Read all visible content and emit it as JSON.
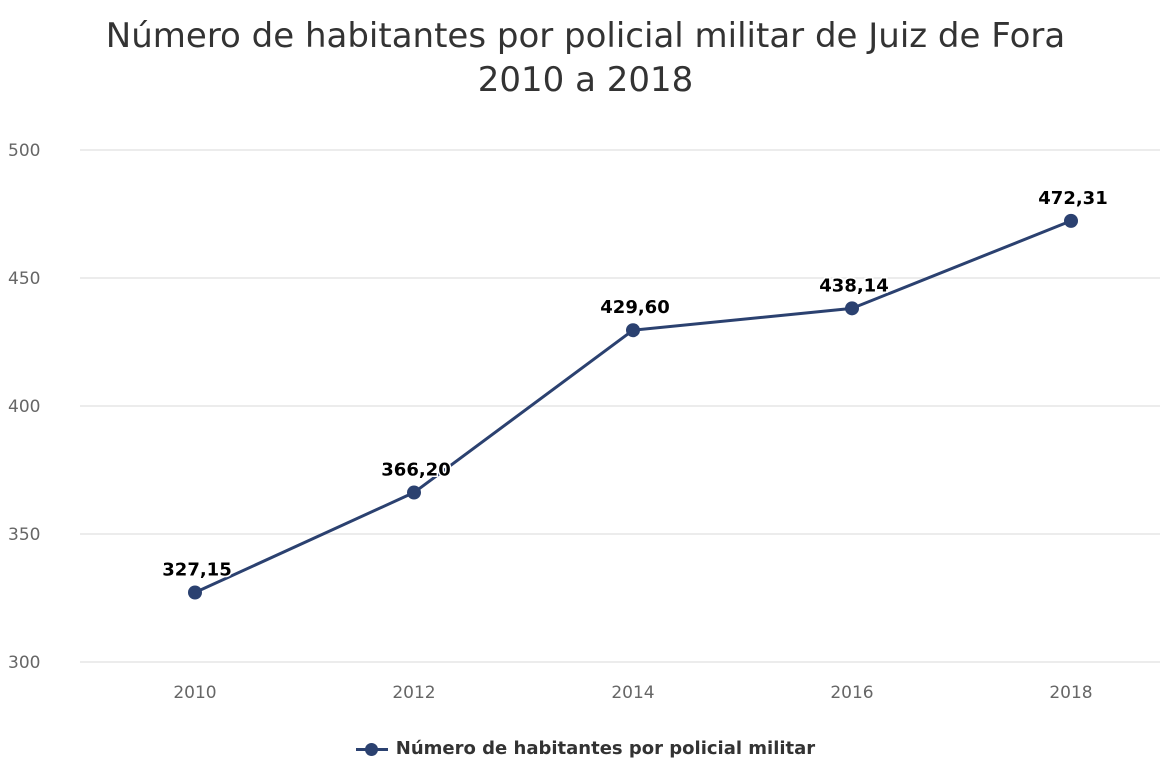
{
  "chart_data": {
    "type": "line",
    "title_line1": "Número de habitantes por policial militar de Juiz de Fora",
    "title_line2": "2010 a 2018",
    "categories": [
      "2010",
      "2012",
      "2014",
      "2016",
      "2018"
    ],
    "series": [
      {
        "name": "Número de habitantes por policial militar",
        "values": [
          327.15,
          366.2,
          429.6,
          438.14,
          472.31
        ],
        "data_labels": [
          "327,15",
          "366,20",
          "429,60",
          "438,14",
          "472,31"
        ],
        "color": "#2b4170"
      }
    ],
    "y_ticks": [
      "300",
      "350",
      "400",
      "450",
      "500"
    ],
    "ylim": [
      300,
      500
    ],
    "grid": true,
    "legend_position": "bottom-center",
    "gridline_color": "#e6e6e6"
  }
}
